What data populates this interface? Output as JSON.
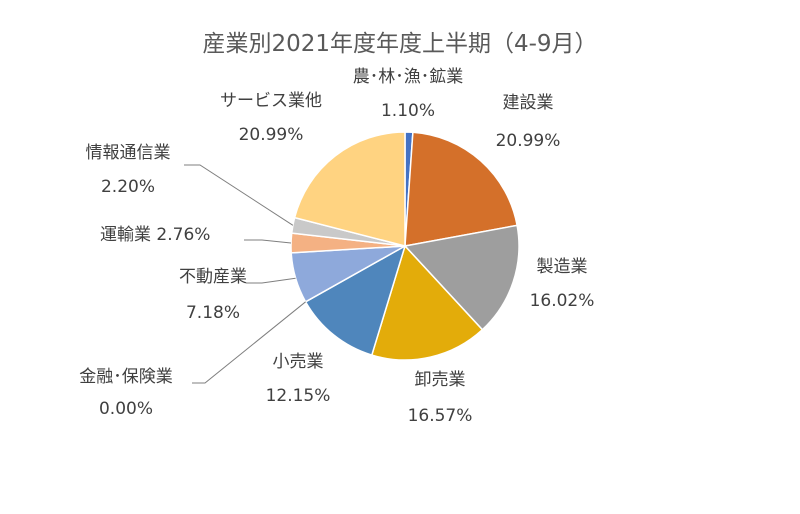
{
  "chart_data": {
    "type": "pie",
    "title": "産業別2021年度年度上半期（4-9月）",
    "categories": [
      "農･林･漁･鉱業",
      "建設業",
      "製造業",
      "卸売業",
      "小売業",
      "金融･保険業",
      "不動産業",
      "運輸業",
      "情報通信業",
      "サービス業他"
    ],
    "values": [
      1.1,
      20.99,
      16.02,
      16.57,
      12.15,
      0.0,
      7.18,
      2.76,
      2.2,
      20.99
    ],
    "value_labels": [
      "1.10%",
      "20.99%",
      "16.02%",
      "16.57%",
      "12.15%",
      "0.00%",
      "7.18%",
      "2.76%",
      "2.20%",
      "20.99%"
    ],
    "colors": [
      "#4472C4",
      "#D4702A",
      "#9E9E9E",
      "#E3AC0A",
      "#4F86BC",
      "#3E6FB0",
      "#8EA9DB",
      "#F4B183",
      "#C9C9C9",
      "#FFD381"
    ],
    "legend": "none",
    "label_position": "outside"
  }
}
